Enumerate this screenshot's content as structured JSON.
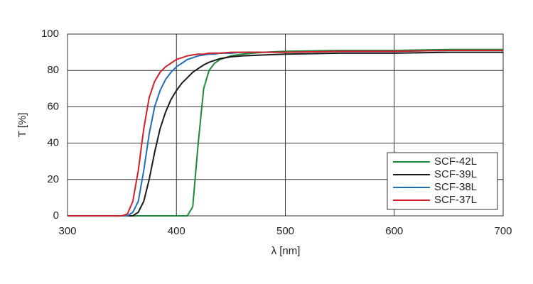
{
  "chart_data": {
    "type": "line",
    "x_label": "λ [nm]",
    "y_label": "T [%]",
    "x": [
      300,
      350,
      355,
      360,
      365,
      370,
      375,
      380,
      385,
      390,
      395,
      400,
      405,
      410,
      415,
      420,
      425,
      430,
      435,
      440,
      450,
      460,
      480,
      500,
      550,
      600,
      650,
      700
    ],
    "series": [
      {
        "name": "SCF-42L",
        "color": "#1a8a3a",
        "values": [
          0,
          0,
          0,
          0,
          0,
          0,
          0,
          0,
          0,
          0,
          0,
          0,
          0,
          0,
          5,
          40,
          70,
          80,
          84,
          86,
          88,
          89,
          90,
          90.5,
          91,
          91,
          91.5,
          91.5
        ]
      },
      {
        "name": "SCF-39L",
        "color": "#1a1a1a",
        "values": [
          0,
          0,
          0,
          0,
          2,
          8,
          20,
          35,
          48,
          57,
          64,
          69,
          73,
          76,
          79,
          81,
          83,
          84.5,
          85.5,
          86.5,
          87.5,
          88,
          88.5,
          89,
          89.5,
          89.5,
          90,
          90
        ]
      },
      {
        "name": "SCF-38L",
        "color": "#1f6fb8",
        "values": [
          0,
          0,
          0,
          2,
          8,
          25,
          45,
          60,
          69,
          75,
          79,
          82,
          84,
          86,
          87,
          88,
          88.5,
          89,
          89,
          89.5,
          89.5,
          90,
          90,
          90,
          90.5,
          90.5,
          91,
          91
        ]
      },
      {
        "name": "SCF-37L",
        "color": "#d0202a",
        "values": [
          0,
          0,
          1,
          8,
          25,
          48,
          65,
          74,
          79,
          82,
          84,
          86,
          87,
          88,
          88.5,
          89,
          89,
          89.5,
          89.5,
          89.5,
          90,
          90,
          90,
          90,
          90.5,
          90.5,
          91,
          91
        ]
      }
    ],
    "xlim": [
      300,
      700
    ],
    "xticks": [
      300,
      400,
      500,
      600,
      700
    ],
    "ylim": [
      0,
      100
    ],
    "yticks": [
      0,
      20,
      40,
      60,
      80,
      100
    ],
    "grid": true,
    "legend": "lower-right"
  }
}
